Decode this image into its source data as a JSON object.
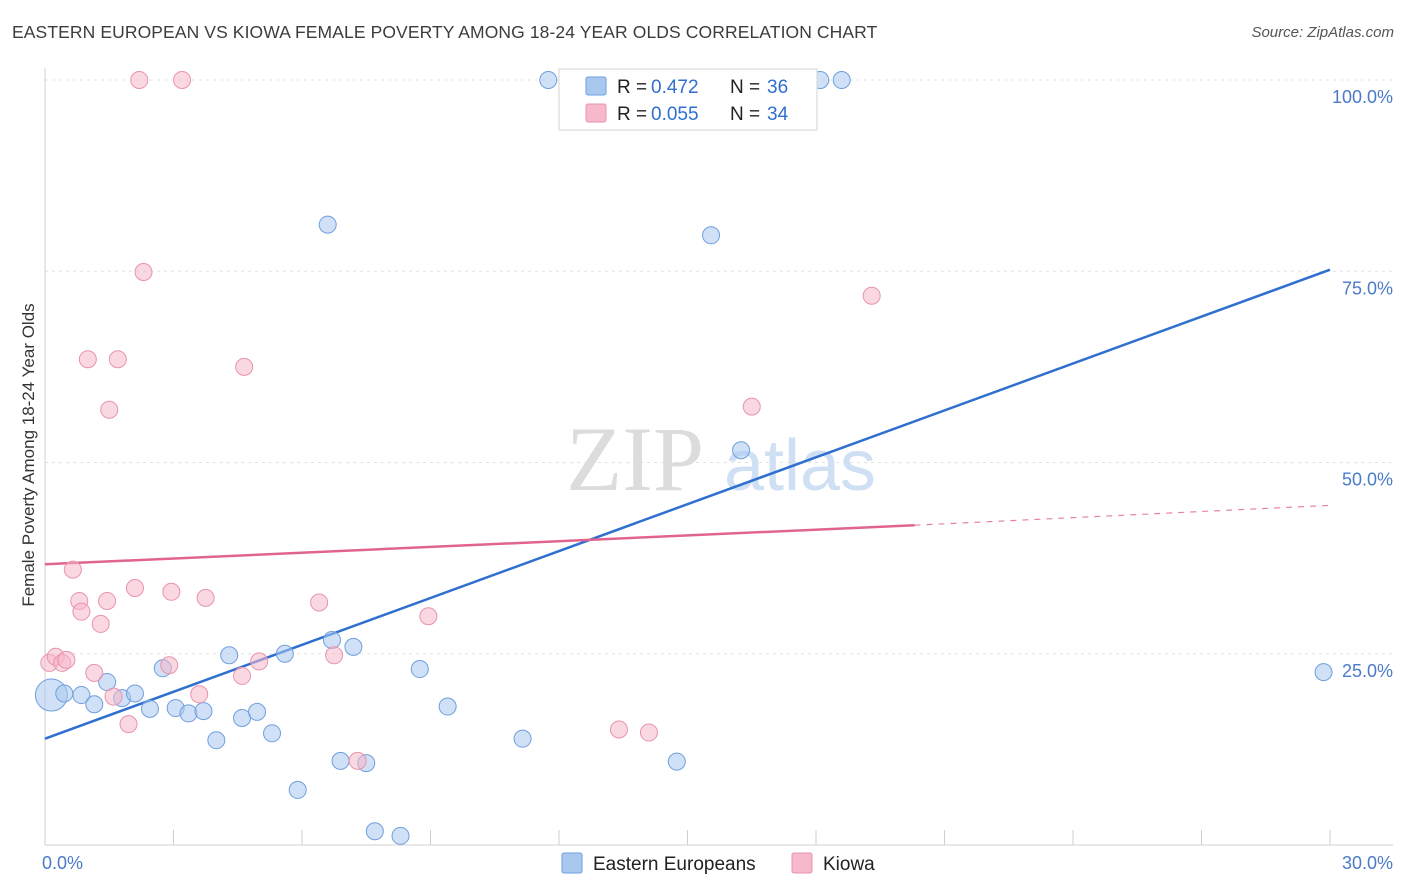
{
  "header": {
    "title": "EASTERN EUROPEAN VS KIOWA FEMALE POVERTY AMONG 18-24 YEAR OLDS CORRELATION CHART",
    "source": "Source: ZipAtlas.com"
  },
  "watermark": {
    "zip": "ZIP",
    "atlas": "atlas"
  },
  "chart_data": {
    "type": "scatter",
    "xlabel": "",
    "ylabel": "Female Poverty Among 18-24 Year Olds",
    "xlim": [
      0,
      30
    ],
    "ylim": [
      0,
      100
    ],
    "x_tick_labels": {
      "left": "0.0%",
      "right": "30.0%"
    },
    "y_tick_labels": [
      {
        "value": 25,
        "label": "25.0%"
      },
      {
        "value": 50,
        "label": "50.0%"
      },
      {
        "value": 75,
        "label": "75.0%"
      },
      {
        "value": 100,
        "label": "100.0%"
      }
    ],
    "grid": true,
    "legend_placement": "top-center",
    "stats_legend": [
      {
        "r_label": "R =",
        "r_value": "0.472",
        "n_label": "N =",
        "n_value": "36",
        "color": "#a9c8f0"
      },
      {
        "r_label": "R =",
        "r_value": "0.055",
        "n_label": "N =",
        "n_value": "34",
        "color": "#f6b8cb"
      }
    ],
    "series": [
      {
        "name": "Eastern Europeans",
        "color": "#a9c8f0",
        "stroke": "#6f9fdc",
        "trend": {
          "x1": 0,
          "y1": 13.9,
          "x2": 30,
          "y2": 75.2,
          "color": "#2f6fcf"
        },
        "points": [
          {
            "x": 0.15,
            "y": 19.6,
            "big": true
          },
          {
            "x": 0.45,
            "y": 19.8
          },
          {
            "x": 0.85,
            "y": 19.6
          },
          {
            "x": 1.15,
            "y": 18.4
          },
          {
            "x": 1.45,
            "y": 21.3
          },
          {
            "x": 1.8,
            "y": 19.2
          },
          {
            "x": 2.1,
            "y": 19.8
          },
          {
            "x": 2.45,
            "y": 17.8
          },
          {
            "x": 2.75,
            "y": 23.1
          },
          {
            "x": 3.05,
            "y": 17.9
          },
          {
            "x": 3.35,
            "y": 17.2
          },
          {
            "x": 3.7,
            "y": 17.5
          },
          {
            "x": 4.0,
            "y": 13.7
          },
          {
            "x": 4.3,
            "y": 24.8
          },
          {
            "x": 4.6,
            "y": 16.6
          },
          {
            "x": 4.95,
            "y": 17.4
          },
          {
            "x": 5.3,
            "y": 14.6
          },
          {
            "x": 5.6,
            "y": 25.0
          },
          {
            "x": 5.9,
            "y": 7.2
          },
          {
            "x": 6.6,
            "y": 81.1
          },
          {
            "x": 6.7,
            "y": 26.8
          },
          {
            "x": 6.9,
            "y": 11.0
          },
          {
            "x": 7.2,
            "y": 25.9
          },
          {
            "x": 7.5,
            "y": 10.7
          },
          {
            "x": 7.7,
            "y": 1.8
          },
          {
            "x": 8.3,
            "y": 1.2
          },
          {
            "x": 8.75,
            "y": 23.0
          },
          {
            "x": 9.4,
            "y": 18.1
          },
          {
            "x": 11.15,
            "y": 13.9
          },
          {
            "x": 11.75,
            "y": 100.0
          },
          {
            "x": 14.75,
            "y": 10.9
          },
          {
            "x": 15.55,
            "y": 79.7
          },
          {
            "x": 16.25,
            "y": 51.6
          },
          {
            "x": 18.1,
            "y": 100.0
          },
          {
            "x": 18.6,
            "y": 100.0
          },
          {
            "x": 29.85,
            "y": 22.6
          }
        ]
      },
      {
        "name": "Kiowa",
        "color": "#f6b8cb",
        "stroke": "#e893ad",
        "trend": {
          "x1": 0,
          "y1": 36.7,
          "x2": 20.3,
          "y2": 41.8,
          "dash_to_x": 30,
          "dash_to_y": 44.4,
          "color": "#e0648f"
        },
        "points": [
          {
            "x": 0.1,
            "y": 23.8
          },
          {
            "x": 0.25,
            "y": 24.6
          },
          {
            "x": 0.4,
            "y": 23.8
          },
          {
            "x": 0.5,
            "y": 24.2
          },
          {
            "x": 0.65,
            "y": 36.0
          },
          {
            "x": 0.8,
            "y": 31.9
          },
          {
            "x": 0.85,
            "y": 30.5
          },
          {
            "x": 1.0,
            "y": 63.5
          },
          {
            "x": 1.15,
            "y": 22.5
          },
          {
            "x": 1.3,
            "y": 28.9
          },
          {
            "x": 1.45,
            "y": 31.9
          },
          {
            "x": 1.5,
            "y": 56.9
          },
          {
            "x": 1.6,
            "y": 19.4
          },
          {
            "x": 1.7,
            "y": 63.5
          },
          {
            "x": 1.95,
            "y": 15.8
          },
          {
            "x": 2.1,
            "y": 33.6
          },
          {
            "x": 2.2,
            "y": 100.0
          },
          {
            "x": 2.3,
            "y": 74.9
          },
          {
            "x": 2.9,
            "y": 23.5
          },
          {
            "x": 2.95,
            "y": 33.1
          },
          {
            "x": 3.2,
            "y": 100.0
          },
          {
            "x": 3.6,
            "y": 19.7
          },
          {
            "x": 3.75,
            "y": 32.3
          },
          {
            "x": 4.6,
            "y": 22.1
          },
          {
            "x": 4.65,
            "y": 62.5
          },
          {
            "x": 5.0,
            "y": 24.0
          },
          {
            "x": 6.4,
            "y": 31.7
          },
          {
            "x": 6.75,
            "y": 24.8
          },
          {
            "x": 7.3,
            "y": 11.0
          },
          {
            "x": 8.95,
            "y": 29.9
          },
          {
            "x": 13.4,
            "y": 15.1
          },
          {
            "x": 14.1,
            "y": 14.7
          },
          {
            "x": 16.5,
            "y": 57.3
          },
          {
            "x": 19.3,
            "y": 71.8
          }
        ]
      }
    ]
  }
}
